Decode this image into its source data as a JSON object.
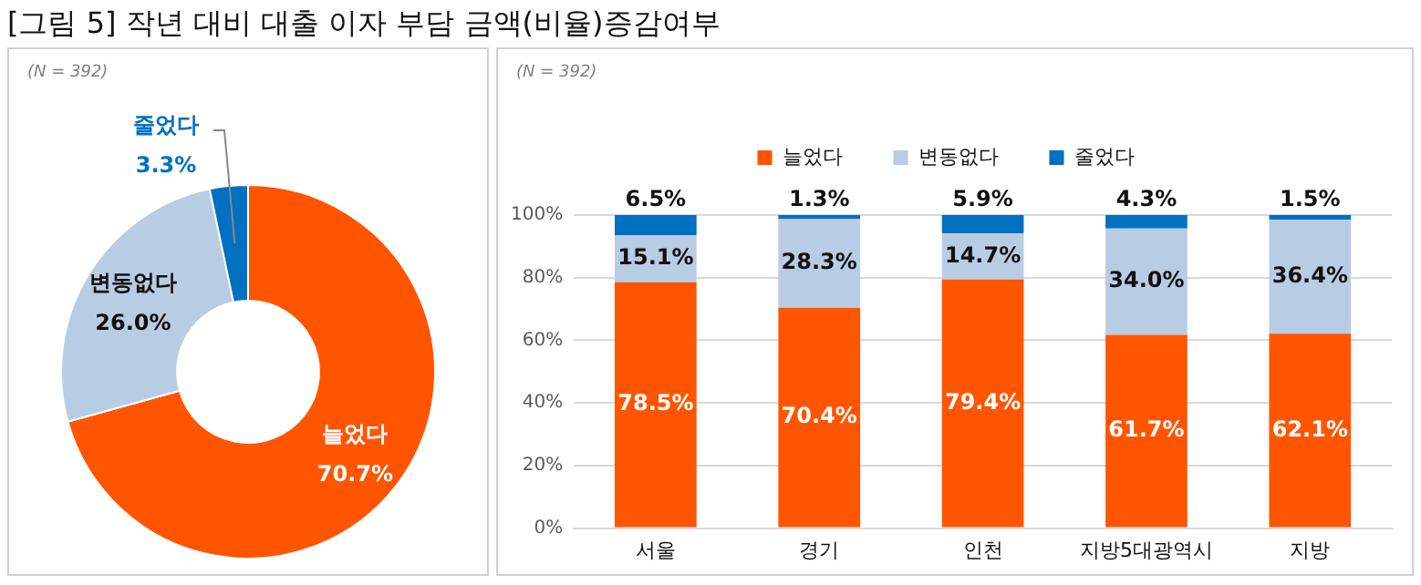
{
  "chart_data": [
    {
      "type": "donut",
      "title": "[그림 5] 작년 대비 대출 이자 부담 금액(비율)증감여부",
      "annotations": [
        "(N = 392)"
      ],
      "categories": [
        "늘었다",
        "변동없다",
        "줄었다"
      ],
      "values": [
        70.7,
        26.0,
        3.3
      ],
      "colors": [
        "#ff5500",
        "#b8cce4",
        "#0070c0"
      ],
      "value_labels": [
        "70.7%",
        "26.0%",
        "3.3%"
      ],
      "legend": false
    },
    {
      "type": "bar",
      "annotations": [
        "(N = 392)"
      ],
      "categories": [
        "서울",
        "경기",
        "인천",
        "지방5대광역시",
        "지방"
      ],
      "stacked": true,
      "legend": "top",
      "grid": "y",
      "ylim": [
        0,
        100
      ],
      "yticks": [
        {
          "value": 0,
          "label": "0%"
        },
        {
          "value": 20,
          "label": "20%"
        },
        {
          "value": 40,
          "label": "40%"
        },
        {
          "value": 60,
          "label": "60%"
        },
        {
          "value": 80,
          "label": "80%"
        },
        {
          "value": 100,
          "label": "100%"
        }
      ],
      "series": [
        {
          "name": "늘었다",
          "color": "#ff5500",
          "values": [
            78.5,
            70.4,
            79.4,
            61.7,
            62.1
          ],
          "value_labels": [
            "78.5%",
            "70.4%",
            "79.4%",
            "61.7%",
            "62.1%"
          ]
        },
        {
          "name": "변동없다",
          "color": "#b8cce4",
          "values": [
            15.1,
            28.3,
            14.7,
            34.0,
            36.4
          ],
          "value_labels": [
            "15.1%",
            "28.3%",
            "14.7%",
            "34.0%",
            "36.4%"
          ]
        },
        {
          "name": "줄었다",
          "color": "#0070c0",
          "values": [
            6.5,
            1.3,
            5.9,
            4.3,
            1.5
          ],
          "value_labels": [
            "6.5%",
            "1.3%",
            "5.9%",
            "4.3%",
            "1.5%"
          ]
        }
      ]
    }
  ]
}
